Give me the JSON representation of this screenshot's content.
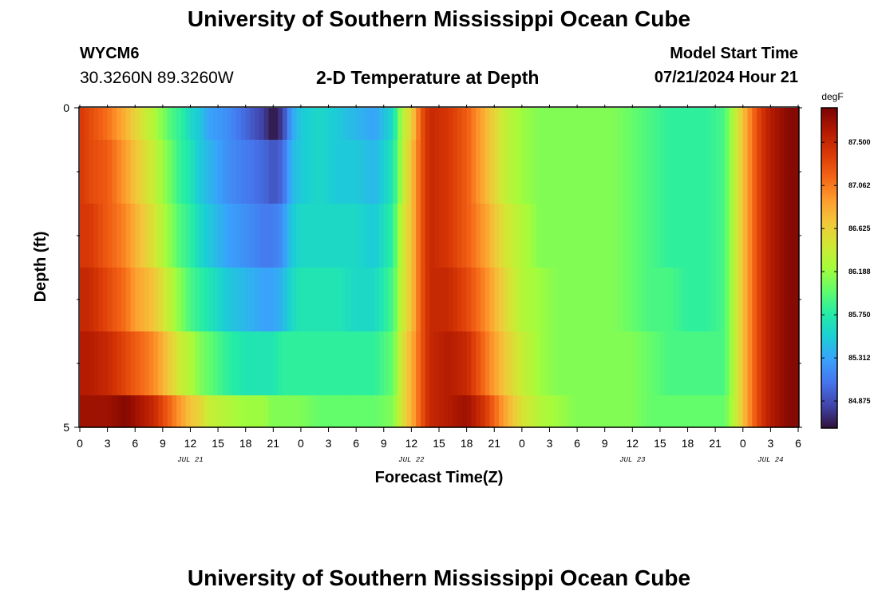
{
  "header": {
    "title": "University of Southern Mississippi Ocean Cube",
    "station": "WYCM6",
    "coordinates": "30.3260N  89.3260W",
    "plot_title": "2-D Temperature at Depth",
    "start_label": "Model Start Time",
    "start_value": "07/21/2024 Hour 21"
  },
  "footer": {
    "title": "University of Southern Mississippi Ocean Cube"
  },
  "chart_data": {
    "type": "heatmap",
    "xlabel": "Forecast Time(Z)",
    "ylabel": "Depth (ft)",
    "x_tick_labels": [
      "0",
      "3",
      "6",
      "9",
      "12",
      "15",
      "18",
      "21",
      "0",
      "3",
      "6",
      "9",
      "12",
      "15",
      "18",
      "21",
      "0",
      "3",
      "6",
      "9",
      "12",
      "15",
      "18",
      "21",
      "0",
      "3",
      "6"
    ],
    "date_labels": [
      {
        "text": "JUL 21",
        "at_hour": 12
      },
      {
        "text": "JUL 22",
        "at_hour": 36
      },
      {
        "text": "JUL 23",
        "at_hour": 60
      },
      {
        "text": "JUL 24",
        "at_hour": 75
      }
    ],
    "x_range_hours": [
      0,
      78
    ],
    "y_range": [
      0,
      5
    ],
    "y_tick_labels": [
      {
        "value": 0,
        "label": "0"
      },
      {
        "value": 5,
        "label": "5"
      }
    ],
    "y_minor_ticks": [
      1,
      2,
      3,
      4
    ],
    "depth_layers": [
      [
        0,
        0.5
      ],
      [
        0.5,
        1.5
      ],
      [
        1.5,
        2.5
      ],
      [
        2.5,
        3.5
      ],
      [
        3.5,
        4.5
      ],
      [
        4.5,
        5
      ]
    ],
    "colorbar": {
      "unit": "degF",
      "min": 84.6,
      "max": 87.85,
      "tick_labels": [
        "84.875",
        "85.312",
        "85.750",
        "86.188",
        "86.625",
        "87.062",
        "87.500"
      ],
      "colors": [
        "#30123b",
        "#4145ab",
        "#4675ed",
        "#39a2fc",
        "#1bcfd4",
        "#24eca6",
        "#61fc6c",
        "#a4fc3b",
        "#d1e834",
        "#f3c63a",
        "#fe9b2d",
        "#f36315",
        "#d93806",
        "#b11901",
        "#7a0402"
      ]
    },
    "temperature_profile": {
      "hours": [
        0,
        1,
        3,
        5,
        6,
        8,
        9,
        10,
        11,
        12,
        13,
        14,
        16,
        18,
        20,
        21,
        22,
        23,
        24,
        26,
        28,
        30,
        32,
        34,
        35,
        36,
        37,
        38,
        40,
        42,
        44,
        46,
        48,
        50,
        52,
        54,
        56,
        58,
        60,
        62,
        64,
        66,
        68,
        70,
        71,
        72,
        73,
        74,
        75,
        76,
        77,
        78
      ],
      "layers": [
        [
          87.4,
          87.3,
          87.1,
          86.8,
          86.6,
          86.3,
          86.1,
          85.9,
          85.8,
          85.6,
          85.5,
          85.3,
          85.2,
          85.0,
          84.8,
          84.6,
          84.8,
          85.3,
          85.5,
          85.6,
          85.5,
          85.4,
          85.3,
          85.6,
          86.3,
          86.6,
          87.2,
          87.5,
          87.4,
          87.2,
          86.8,
          86.4,
          86.2,
          86.1,
          86.1,
          86.1,
          86.1,
          86.1,
          86.0,
          85.9,
          85.8,
          85.8,
          85.8,
          85.9,
          86.3,
          86.7,
          87.1,
          87.4,
          87.6,
          87.7,
          87.8,
          87.8
        ],
        [
          87.4,
          87.3,
          87.2,
          86.9,
          86.7,
          86.4,
          86.2,
          86.0,
          85.8,
          85.7,
          85.5,
          85.4,
          85.2,
          85.1,
          85.0,
          84.9,
          85.0,
          85.4,
          85.5,
          85.6,
          85.5,
          85.5,
          85.4,
          85.7,
          86.3,
          86.7,
          87.2,
          87.5,
          87.4,
          87.2,
          86.8,
          86.4,
          86.2,
          86.1,
          86.1,
          86.1,
          86.1,
          86.1,
          86.0,
          85.9,
          85.8,
          85.8,
          85.8,
          85.9,
          86.3,
          86.7,
          87.1,
          87.4,
          87.6,
          87.7,
          87.8,
          87.8
        ],
        [
          87.4,
          87.4,
          87.2,
          87.0,
          86.8,
          86.5,
          86.3,
          86.1,
          85.9,
          85.8,
          85.6,
          85.5,
          85.3,
          85.2,
          85.1,
          85.1,
          85.2,
          85.5,
          85.6,
          85.6,
          85.6,
          85.6,
          85.5,
          85.8,
          86.4,
          86.7,
          87.2,
          87.5,
          87.4,
          87.2,
          86.9,
          86.5,
          86.3,
          86.1,
          86.1,
          86.1,
          86.1,
          86.1,
          86.0,
          85.9,
          85.8,
          85.8,
          85.8,
          85.9,
          86.3,
          86.7,
          87.1,
          87.4,
          87.6,
          87.7,
          87.8,
          87.8
        ],
        [
          87.5,
          87.5,
          87.3,
          87.1,
          86.9,
          86.7,
          86.5,
          86.3,
          86.1,
          85.9,
          85.8,
          85.7,
          85.5,
          85.4,
          85.3,
          85.3,
          85.4,
          85.6,
          85.7,
          85.7,
          85.7,
          85.6,
          85.6,
          85.9,
          86.4,
          86.7,
          87.2,
          87.5,
          87.5,
          87.3,
          87.0,
          86.6,
          86.3,
          86.2,
          86.1,
          86.1,
          86.1,
          86.1,
          86.0,
          85.9,
          85.9,
          85.8,
          85.8,
          85.9,
          86.3,
          86.7,
          87.1,
          87.4,
          87.6,
          87.7,
          87.8,
          87.8
        ],
        [
          87.6,
          87.6,
          87.5,
          87.3,
          87.2,
          87.0,
          86.8,
          86.6,
          86.4,
          86.3,
          86.1,
          86.0,
          85.8,
          85.7,
          85.7,
          85.7,
          85.8,
          85.8,
          85.8,
          85.8,
          85.8,
          85.8,
          85.8,
          86.0,
          86.5,
          86.8,
          87.2,
          87.5,
          87.6,
          87.5,
          87.1,
          86.7,
          86.4,
          86.2,
          86.1,
          86.1,
          86.1,
          86.1,
          86.1,
          86.0,
          85.9,
          85.9,
          85.9,
          85.9,
          86.3,
          86.7,
          87.1,
          87.4,
          87.6,
          87.7,
          87.8,
          87.8
        ],
        [
          87.7,
          87.7,
          87.7,
          87.8,
          87.7,
          87.5,
          87.3,
          87.1,
          86.9,
          86.7,
          86.6,
          86.4,
          86.3,
          86.2,
          86.2,
          86.1,
          86.1,
          86.1,
          86.1,
          86.0,
          86.0,
          86.0,
          86.0,
          86.1,
          86.5,
          86.8,
          87.2,
          87.5,
          87.6,
          87.7,
          87.4,
          86.9,
          86.5,
          86.3,
          86.2,
          86.1,
          86.1,
          86.1,
          86.1,
          86.0,
          86.0,
          86.0,
          86.0,
          86.0,
          86.3,
          86.7,
          87.1,
          87.4,
          87.6,
          87.7,
          87.8,
          87.8
        ]
      ]
    }
  }
}
